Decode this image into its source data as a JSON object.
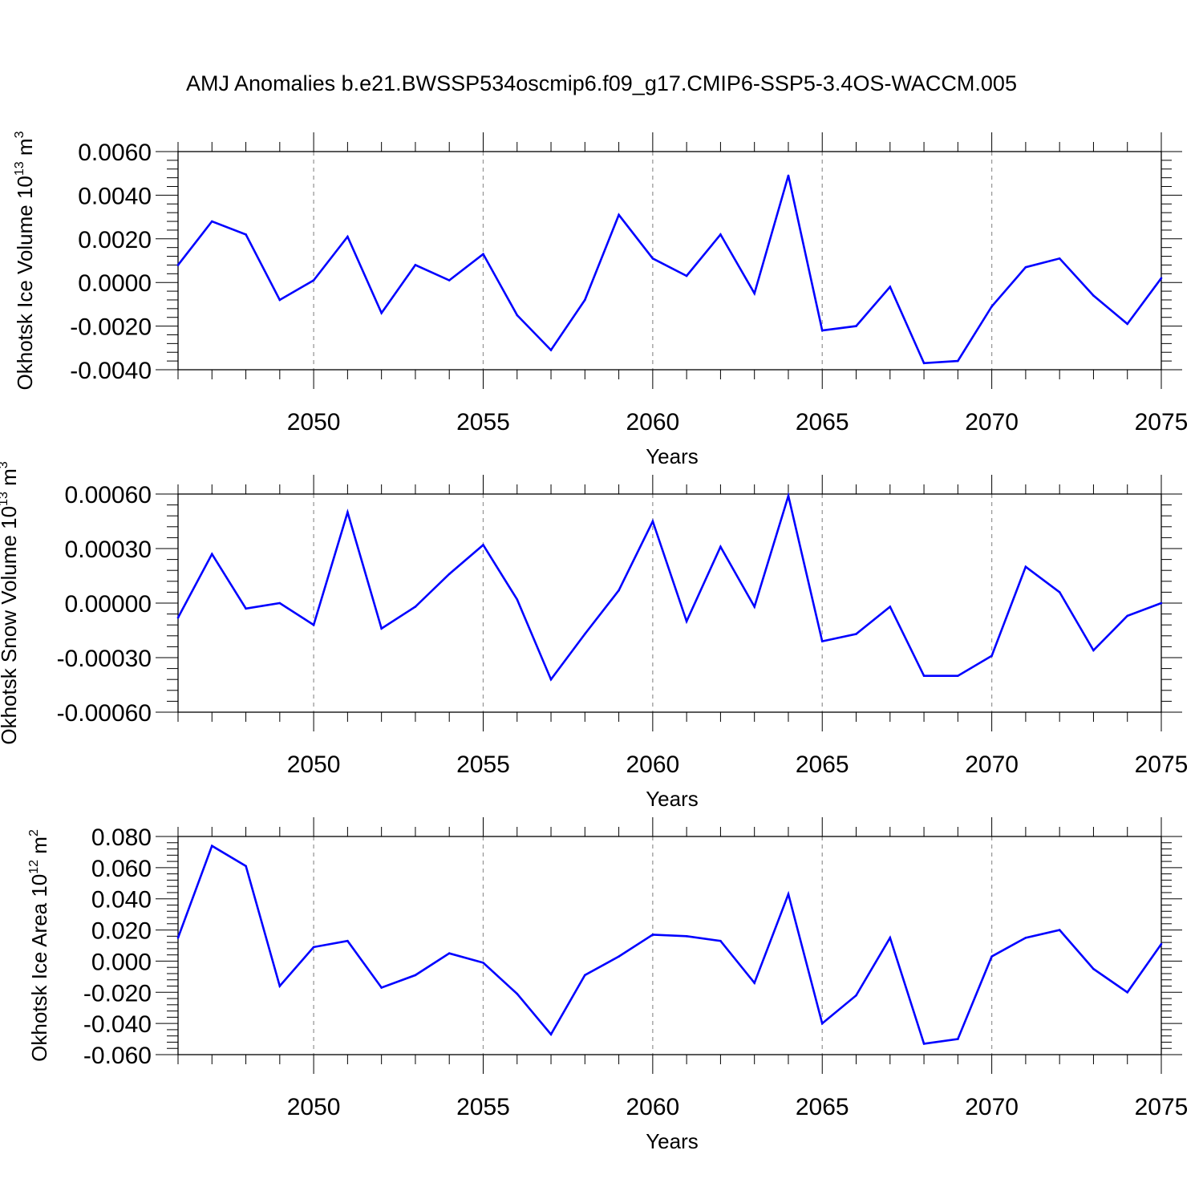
{
  "title": "AMJ Anomalies b.e21.BWSSP534oscmip6.f09_g17.CMIP6-SSP5-3.4OS-WACCM.005",
  "chart_data": [
    {
      "type": "line",
      "ylabel": "Okhotsk Ice Volume 10",
      "ylabel_exponent": "13",
      "ylabel_unit": " m",
      "ylabel_unit_exponent": "3",
      "xlabel": "Years",
      "xlim": [
        2046,
        2075
      ],
      "ylim": [
        -0.004,
        0.006
      ],
      "xticks": [
        2050,
        2055,
        2060,
        2065,
        2070,
        2075
      ],
      "yticks": [
        -0.004,
        -0.002,
        0.0,
        0.002,
        0.004,
        0.006
      ],
      "ytick_labels": [
        "-0.0040",
        "-0.0020",
        "0.0000",
        "0.0020",
        "0.0040",
        "0.0060"
      ],
      "x": [
        2046,
        2047,
        2048,
        2049,
        2050,
        2051,
        2052,
        2053,
        2054,
        2055,
        2056,
        2057,
        2058,
        2059,
        2060,
        2061,
        2062,
        2063,
        2064,
        2065,
        2066,
        2067,
        2068,
        2069,
        2070,
        2071,
        2072,
        2073,
        2074,
        2075
      ],
      "values": [
        0.0008,
        0.0028,
        0.0022,
        -0.0008,
        0.0001,
        0.0021,
        -0.0014,
        0.0008,
        0.0001,
        0.0013,
        -0.0015,
        -0.0031,
        -0.0008,
        0.0031,
        0.0011,
        0.0003,
        0.0022,
        -0.0005,
        0.0049,
        -0.0022,
        -0.002,
        -0.0002,
        -0.0037,
        -0.0036,
        -0.0011,
        0.0007,
        0.0011,
        -0.0006,
        -0.0019,
        0.0002
      ],
      "color": "#0000ff"
    },
    {
      "type": "line",
      "ylabel": "Okhotsk Snow Volume 10",
      "ylabel_exponent": "13",
      "ylabel_unit": " m",
      "ylabel_unit_exponent": "3",
      "xlabel": "Years",
      "xlim": [
        2046,
        2075
      ],
      "ylim": [
        -0.0006,
        0.0006
      ],
      "xticks": [
        2050,
        2055,
        2060,
        2065,
        2070,
        2075
      ],
      "yticks": [
        -0.0006,
        -0.0003,
        0.0,
        0.0003,
        0.0006
      ],
      "ytick_labels": [
        "-0.00060",
        "-0.00030",
        "0.00000",
        "0.00030",
        "0.00060"
      ],
      "x": [
        2046,
        2047,
        2048,
        2049,
        2050,
        2051,
        2052,
        2053,
        2054,
        2055,
        2056,
        2057,
        2058,
        2059,
        2060,
        2061,
        2062,
        2063,
        2064,
        2065,
        2066,
        2067,
        2068,
        2069,
        2070,
        2071,
        2072,
        2073,
        2074,
        2075
      ],
      "values": [
        -8e-05,
        0.00027,
        -3e-05,
        0.0,
        -0.00012,
        0.0005,
        -0.00014,
        -2e-05,
        0.00016,
        0.00032,
        2e-05,
        -0.00042,
        -0.00017,
        7e-05,
        0.00045,
        -0.0001,
        0.00031,
        -2e-05,
        0.00059,
        -0.00021,
        -0.00017,
        -2e-05,
        -0.0004,
        -0.0004,
        -0.00029,
        0.0002,
        6e-05,
        -0.00026,
        -7e-05,
        0.0
      ],
      "color": "#0000ff"
    },
    {
      "type": "line",
      "ylabel": "Okhotsk Ice Area 10",
      "ylabel_exponent": "12",
      "ylabel_unit": " m",
      "ylabel_unit_exponent": "2",
      "xlabel": "Years",
      "xlim": [
        2046,
        2075
      ],
      "ylim": [
        -0.06,
        0.08
      ],
      "xticks": [
        2050,
        2055,
        2060,
        2065,
        2070,
        2075
      ],
      "yticks": [
        -0.06,
        -0.04,
        -0.02,
        0.0,
        0.02,
        0.04,
        0.06,
        0.08
      ],
      "ytick_labels": [
        "-0.060",
        "-0.040",
        "-0.020",
        "0.000",
        "0.020",
        "0.040",
        "0.060",
        "0.080"
      ],
      "x": [
        2046,
        2047,
        2048,
        2049,
        2050,
        2051,
        2052,
        2053,
        2054,
        2055,
        2056,
        2057,
        2058,
        2059,
        2060,
        2061,
        2062,
        2063,
        2064,
        2065,
        2066,
        2067,
        2068,
        2069,
        2070,
        2071,
        2072,
        2073,
        2074,
        2075
      ],
      "values": [
        0.015,
        0.074,
        0.061,
        -0.016,
        0.009,
        0.013,
        -0.017,
        -0.009,
        0.005,
        -0.001,
        -0.021,
        -0.047,
        -0.009,
        0.003,
        0.017,
        0.016,
        0.013,
        -0.014,
        0.043,
        -0.04,
        -0.022,
        0.015,
        -0.053,
        -0.05,
        0.003,
        0.015,
        0.02,
        -0.005,
        -0.02,
        0.011
      ],
      "color": "#0000ff"
    }
  ]
}
